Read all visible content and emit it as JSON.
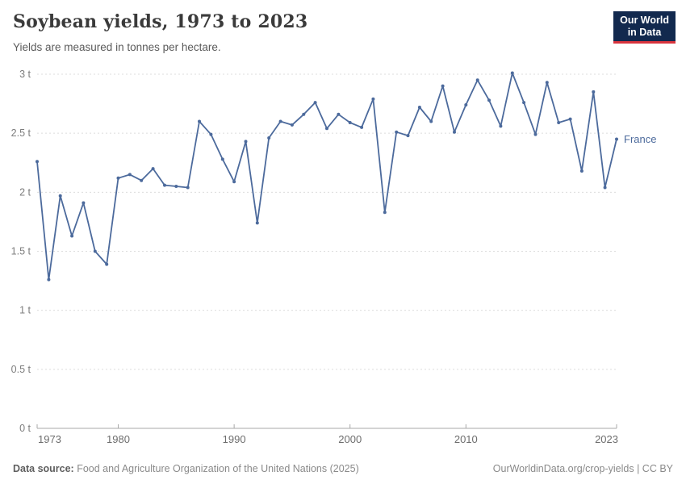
{
  "header": {
    "title": "Soybean yields, 1973 to 2023",
    "subtitle": "Yields are measured in tonnes per hectare.",
    "logo": {
      "line1": "Our World",
      "line2": "in Data",
      "bg_color": "#12294E",
      "accent_color": "#D9343E"
    }
  },
  "chart_data": {
    "type": "line",
    "title": "Soybean yields, 1973 to 2023",
    "subtitle": "Yields are measured in tonnes per hectare.",
    "xlabel": "",
    "ylabel": "tonnes per hectare",
    "xlim": [
      1973,
      2023
    ],
    "ylim": [
      0,
      3
    ],
    "grid": "horizontal-dashed",
    "legend_position": "line-end-label",
    "x_ticks": [
      {
        "value": 1973,
        "label": "1973"
      },
      {
        "value": 1980,
        "label": "1980"
      },
      {
        "value": 1990,
        "label": "1990"
      },
      {
        "value": 2000,
        "label": "2000"
      },
      {
        "value": 2010,
        "label": "2010"
      },
      {
        "value": 2023,
        "label": "2023"
      }
    ],
    "y_ticks": [
      {
        "value": 0,
        "label": "0 t"
      },
      {
        "value": 0.5,
        "label": "0.5 t"
      },
      {
        "value": 1,
        "label": "1 t"
      },
      {
        "value": 1.5,
        "label": "1.5 t"
      },
      {
        "value": 2,
        "label": "2 t"
      },
      {
        "value": 2.5,
        "label": "2.5 t"
      },
      {
        "value": 3,
        "label": "3 t"
      }
    ],
    "series": [
      {
        "name": "France",
        "color": "#4C6A9C",
        "marker": "circle",
        "x": [
          1973,
          1974,
          1975,
          1976,
          1977,
          1978,
          1979,
          1980,
          1981,
          1982,
          1983,
          1984,
          1985,
          1986,
          1987,
          1988,
          1989,
          1990,
          1991,
          1992,
          1993,
          1994,
          1995,
          1996,
          1997,
          1998,
          1999,
          2000,
          2001,
          2002,
          2003,
          2004,
          2005,
          2006,
          2007,
          2008,
          2009,
          2010,
          2011,
          2012,
          2013,
          2014,
          2015,
          2016,
          2017,
          2018,
          2019,
          2020,
          2021,
          2022,
          2023
        ],
        "values": [
          2.26,
          1.26,
          1.97,
          1.63,
          1.91,
          1.5,
          1.39,
          2.12,
          2.15,
          2.1,
          2.2,
          2.06,
          2.05,
          2.04,
          2.6,
          2.49,
          2.28,
          2.09,
          2.43,
          1.74,
          2.46,
          2.6,
          2.57,
          2.66,
          2.76,
          2.54,
          2.66,
          2.59,
          2.55,
          2.79,
          1.83,
          2.51,
          2.48,
          2.72,
          2.6,
          2.9,
          2.51,
          2.74,
          2.95,
          2.78,
          2.56,
          3.01,
          2.76,
          2.49,
          2.93,
          2.59,
          2.62,
          2.18,
          2.85,
          2.04,
          2.45
        ]
      }
    ]
  },
  "footer": {
    "source_label": "Data source:",
    "source_text": "Food and Agriculture Organization of the United Nations (2025)",
    "link_text": "OurWorldinData.org/crop-yields | CC BY"
  },
  "style": {
    "grid_color": "#dcdcdc",
    "axis_color": "#a8a8a8",
    "y_label_color": "#7d7d7d",
    "x_label_color": "#6d6d6d"
  }
}
